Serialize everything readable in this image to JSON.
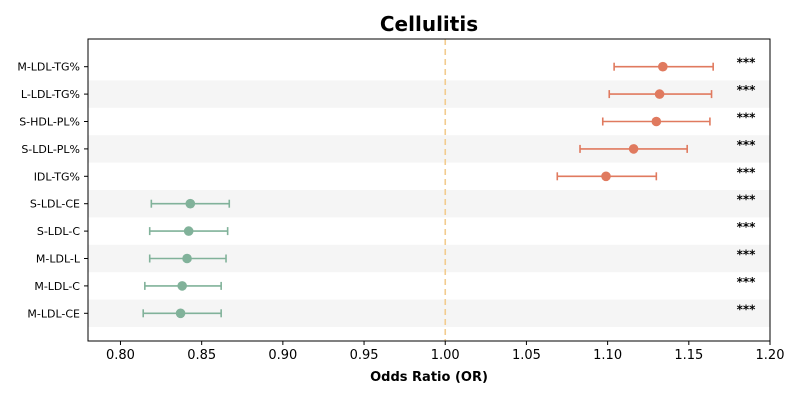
{
  "chart_data": {
    "type": "scatter",
    "subtype": "forest-plot",
    "title": "Cellulitis",
    "xlabel": "Odds Ratio (OR)",
    "ylabel": "",
    "xlim": [
      0.78,
      1.2
    ],
    "xticks": [
      0.8,
      0.85,
      0.9,
      0.95,
      1.0,
      1.05,
      1.1,
      1.15,
      1.2
    ],
    "xtick_labels": [
      "0.80",
      "0.85",
      "0.90",
      "0.95",
      "1.00",
      "1.05",
      "1.10",
      "1.15",
      "1.20"
    ],
    "reference_line": 1.0,
    "significance_label": "***",
    "alternating_row_shading": true,
    "colors": {
      "increased": "#e07a5f",
      "decreased": "#81b29a",
      "reference": "#f2cc8f",
      "row_shade": "#f5f5f5"
    },
    "rows": [
      {
        "label": "M-LDL-TG%",
        "or": 1.134,
        "ci_low": 1.104,
        "ci_high": 1.165,
        "direction": "increased"
      },
      {
        "label": "L-LDL-TG%",
        "or": 1.132,
        "ci_low": 1.101,
        "ci_high": 1.164,
        "direction": "increased"
      },
      {
        "label": "S-HDL-PL%",
        "or": 1.13,
        "ci_low": 1.097,
        "ci_high": 1.163,
        "direction": "increased"
      },
      {
        "label": "S-LDL-PL%",
        "or": 1.116,
        "ci_low": 1.083,
        "ci_high": 1.149,
        "direction": "increased"
      },
      {
        "label": "IDL-TG%",
        "or": 1.099,
        "ci_low": 1.069,
        "ci_high": 1.13,
        "direction": "increased"
      },
      {
        "label": "S-LDL-CE",
        "or": 0.843,
        "ci_low": 0.819,
        "ci_high": 0.867,
        "direction": "decreased"
      },
      {
        "label": "S-LDL-C",
        "or": 0.842,
        "ci_low": 0.818,
        "ci_high": 0.866,
        "direction": "decreased"
      },
      {
        "label": "M-LDL-L",
        "or": 0.841,
        "ci_low": 0.818,
        "ci_high": 0.865,
        "direction": "decreased"
      },
      {
        "label": "M-LDL-C",
        "or": 0.838,
        "ci_low": 0.815,
        "ci_high": 0.862,
        "direction": "decreased"
      },
      {
        "label": "M-LDL-CE",
        "or": 0.837,
        "ci_low": 0.814,
        "ci_high": 0.862,
        "direction": "decreased"
      }
    ]
  }
}
